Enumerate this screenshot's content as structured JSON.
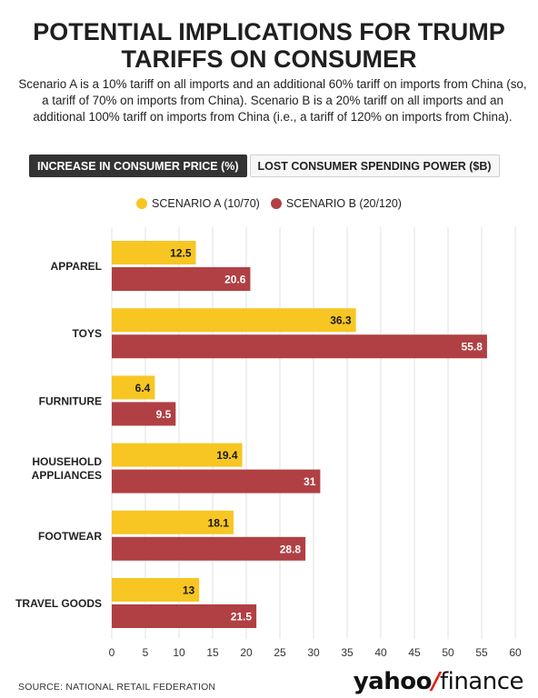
{
  "title": "POTENTIAL IMPLICATIONS FOR TRUMP TARIFFS ON CONSUMER",
  "subtitle": "Scenario A is a 10% tariff on all imports and an additional 60% tariff on imports from China (so, a tariff of 70% on imports from China). Scenario B is a 20% tariff on all imports and an additional 100% tariff on imports from China (i.e., a tariff of 120% on imports from China).",
  "tabs": [
    {
      "label": "INCREASE IN CONSUMER PRICE (%)",
      "active": true
    },
    {
      "label": "LOST CONSUMER SPENDING POWER ($B)",
      "active": false
    }
  ],
  "source": "SOURCE: NATIONAL RETAIL FEDERATION",
  "logo": {
    "word1": "yahoo",
    "slash": "/",
    "word2": "finance"
  },
  "colors": {
    "scenario_a": "#f7c623",
    "scenario_b": "#b04043",
    "grid": "#e2e2e2"
  },
  "chart_data": {
    "type": "bar",
    "orientation": "horizontal",
    "categories": [
      "APPAREL",
      "TOYS",
      "FURNITURE",
      "HOUSEHOLD\nAPPLIANCES",
      "FOOTWEAR",
      "TRAVEL GOODS"
    ],
    "series": [
      {
        "name": "SCENARIO A (10/70)",
        "values": [
          12.5,
          36.3,
          6.4,
          19.4,
          18.1,
          13
        ]
      },
      {
        "name": "SCENARIO B (20/120)",
        "values": [
          20.6,
          55.8,
          9.5,
          31,
          28.8,
          21.5
        ]
      }
    ],
    "xlim": [
      0,
      60
    ],
    "xticks": [
      0,
      5,
      10,
      15,
      20,
      25,
      30,
      35,
      40,
      45,
      50,
      55,
      60
    ],
    "grid": true,
    "legend": "top-center"
  }
}
